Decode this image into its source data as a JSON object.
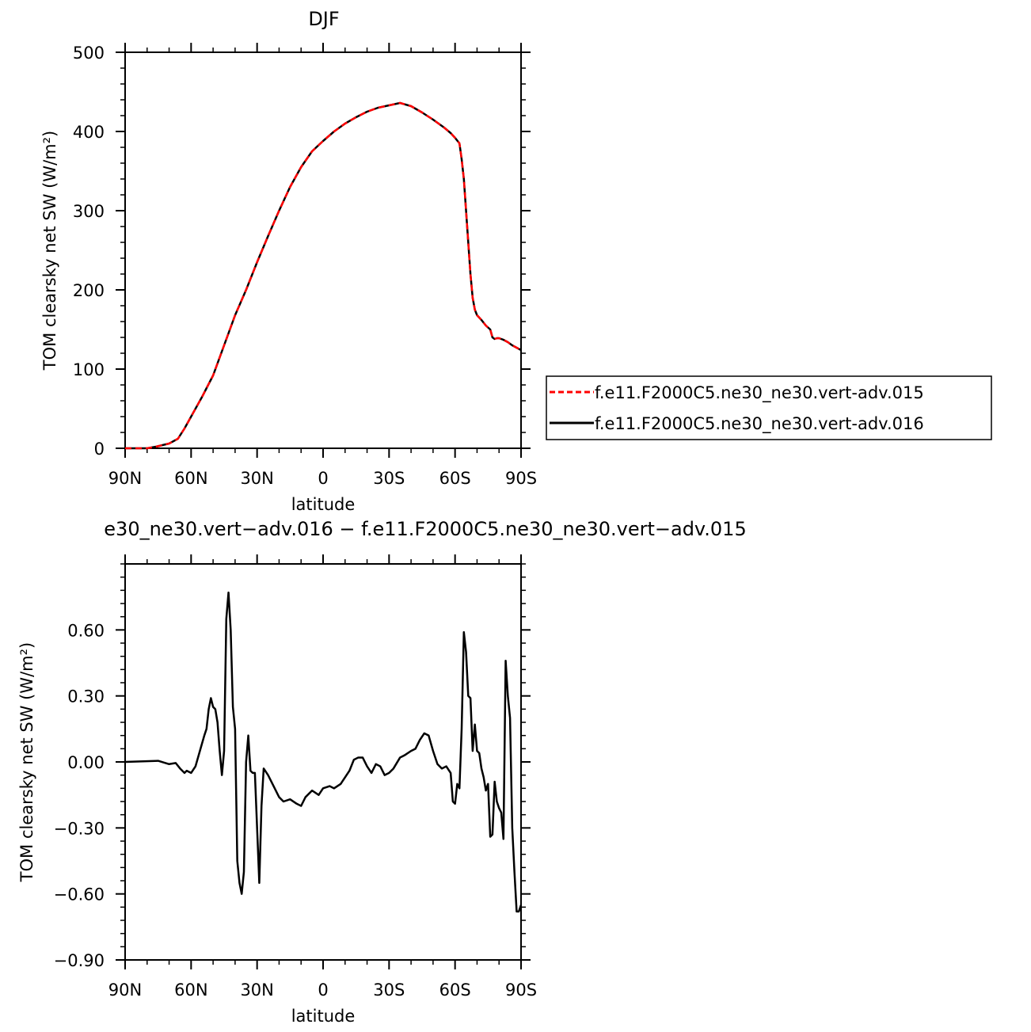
{
  "chart_data": [
    {
      "type": "line",
      "title": "DJF",
      "xlabel": "latitude",
      "ylabel": "TOM clearsky net SW (W/m²)",
      "xlim": [
        -90,
        90
      ],
      "ylim": [
        0,
        500
      ],
      "x_ticks": [
        -90,
        -60,
        -30,
        0,
        30,
        60,
        90
      ],
      "x_tick_labels": [
        "90N",
        "60N",
        "30N",
        "0",
        "30S",
        "60S",
        "90S"
      ],
      "y_ticks": [
        0,
        100,
        200,
        300,
        400,
        500
      ],
      "y_tick_labels": [
        "0",
        "100",
        "200",
        "300",
        "400",
        "500"
      ],
      "legend_position": "right",
      "series": [
        {
          "name": "f.e11.F2000C5.ne30_ne30.vert-adv.015",
          "color": "#ff0000",
          "dash": "dashed",
          "x": [
            -90,
            -80,
            -76,
            -70,
            -66,
            -63,
            -60,
            -55,
            -50,
            -45,
            -40,
            -35,
            -30,
            -25,
            -20,
            -15,
            -10,
            -5,
            0,
            5,
            10,
            15,
            20,
            25,
            30,
            35,
            40,
            45,
            50,
            55,
            58,
            60,
            62,
            63,
            64,
            65,
            66,
            67,
            68,
            69,
            70,
            72,
            74,
            76,
            77,
            78,
            79,
            80,
            82,
            84,
            86,
            88,
            90
          ],
          "y": [
            0,
            0,
            2,
            6,
            12,
            25,
            40,
            65,
            92,
            130,
            168,
            200,
            235,
            268,
            300,
            330,
            355,
            375,
            388,
            400,
            410,
            418,
            425,
            430,
            433,
            436,
            432,
            424,
            415,
            405,
            398,
            392,
            385,
            365,
            340,
            300,
            260,
            220,
            190,
            175,
            168,
            162,
            155,
            150,
            140,
            138,
            139,
            139,
            137,
            134,
            130,
            127,
            124
          ]
        },
        {
          "name": "f.e11.F2000C5.ne30_ne30.vert-adv.016",
          "color": "#000000",
          "dash": "solid",
          "x": [
            -90,
            -80,
            -76,
            -70,
            -66,
            -63,
            -60,
            -55,
            -50,
            -45,
            -40,
            -35,
            -30,
            -25,
            -20,
            -15,
            -10,
            -5,
            0,
            5,
            10,
            15,
            20,
            25,
            30,
            35,
            40,
            45,
            50,
            55,
            58,
            60,
            62,
            63,
            64,
            65,
            66,
            67,
            68,
            69,
            70,
            72,
            74,
            76,
            77,
            78,
            79,
            80,
            82,
            84,
            86,
            88,
            90
          ],
          "y": [
            0,
            0,
            2,
            6,
            12,
            25,
            40,
            65,
            92,
            130,
            168,
            200,
            235,
            268,
            300,
            330,
            355,
            375,
            388,
            400,
            410,
            418,
            425,
            430,
            433,
            436,
            432,
            424,
            415,
            405,
            398,
            392,
            385,
            365,
            340,
            300,
            260,
            220,
            190,
            175,
            168,
            162,
            155,
            150,
            140,
            138,
            139,
            139,
            137,
            134,
            130,
            127,
            124
          ]
        }
      ]
    },
    {
      "type": "line",
      "title": "e30_ne30.vert−adv.016 − f.e11.F2000C5.ne30_ne30.vert−adv.015",
      "xlabel": "latitude",
      "ylabel": "TOM clearsky net SW (W/m²)",
      "xlim": [
        -90,
        90
      ],
      "ylim": [
        -0.9,
        0.9
      ],
      "x_ticks": [
        -90,
        -60,
        -30,
        0,
        30,
        60,
        90
      ],
      "x_tick_labels": [
        "90N",
        "60N",
        "30N",
        "0",
        "30S",
        "60S",
        "90S"
      ],
      "y_ticks": [
        -0.9,
        -0.6,
        -0.3,
        0.0,
        0.3,
        0.6
      ],
      "y_tick_labels": [
        "−0.90",
        "−0.60",
        "−0.30",
        "0.00",
        "0.30",
        "0.60"
      ],
      "series": [
        {
          "color": "#000000",
          "x": [
            -90,
            -75,
            -70,
            -67,
            -65,
            -63,
            -62,
            -60,
            -58,
            -56,
            -54,
            -53,
            -52,
            -51,
            -50,
            -49,
            -48,
            -47,
            -46,
            -45,
            -44,
            -43,
            -42,
            -41,
            -40,
            -39,
            -38,
            -37,
            -36,
            -35,
            -34,
            -33,
            -32,
            -31,
            -30,
            -29,
            -28,
            -27,
            -25,
            -22,
            -20,
            -18,
            -15,
            -12,
            -10,
            -8,
            -5,
            -2,
            0,
            3,
            5,
            8,
            12,
            14,
            16,
            18,
            20,
            22,
            24,
            26,
            28,
            30,
            32,
            35,
            37,
            40,
            42,
            44,
            46,
            48,
            50,
            52,
            54,
            56,
            58,
            59,
            60,
            61,
            62,
            63,
            64,
            65,
            66,
            67,
            68,
            69,
            70,
            71,
            72,
            73,
            74,
            75,
            76,
            77,
            78,
            79,
            80,
            81,
            82,
            83,
            84,
            85,
            86,
            87,
            88,
            89,
            90
          ],
          "y": [
            0.0,
            0.005,
            -0.01,
            -0.005,
            -0.03,
            -0.05,
            -0.04,
            -0.05,
            -0.02,
            0.05,
            0.12,
            0.15,
            0.24,
            0.29,
            0.25,
            0.24,
            0.18,
            0.05,
            -0.06,
            0.05,
            0.65,
            0.77,
            0.6,
            0.25,
            0.15,
            -0.45,
            -0.55,
            -0.6,
            -0.5,
            0.0,
            0.12,
            -0.04,
            -0.05,
            -0.05,
            -0.3,
            -0.55,
            -0.2,
            -0.03,
            -0.06,
            -0.12,
            -0.16,
            -0.18,
            -0.17,
            -0.19,
            -0.2,
            -0.16,
            -0.13,
            -0.15,
            -0.12,
            -0.11,
            -0.12,
            -0.1,
            -0.04,
            0.01,
            0.02,
            0.02,
            -0.02,
            -0.05,
            -0.01,
            -0.02,
            -0.06,
            -0.05,
            -0.03,
            0.02,
            0.03,
            0.05,
            0.06,
            0.1,
            0.13,
            0.12,
            0.05,
            -0.01,
            -0.03,
            -0.02,
            -0.05,
            -0.18,
            -0.19,
            -0.1,
            -0.12,
            0.15,
            0.59,
            0.5,
            0.3,
            0.29,
            0.05,
            0.17,
            0.05,
            0.04,
            -0.03,
            -0.07,
            -0.13,
            -0.1,
            -0.34,
            -0.33,
            -0.09,
            -0.18,
            -0.21,
            -0.23,
            -0.35,
            0.46,
            0.3,
            0.2,
            -0.3,
            -0.5,
            -0.68,
            -0.68,
            -0.65
          ]
        }
      ]
    }
  ]
}
